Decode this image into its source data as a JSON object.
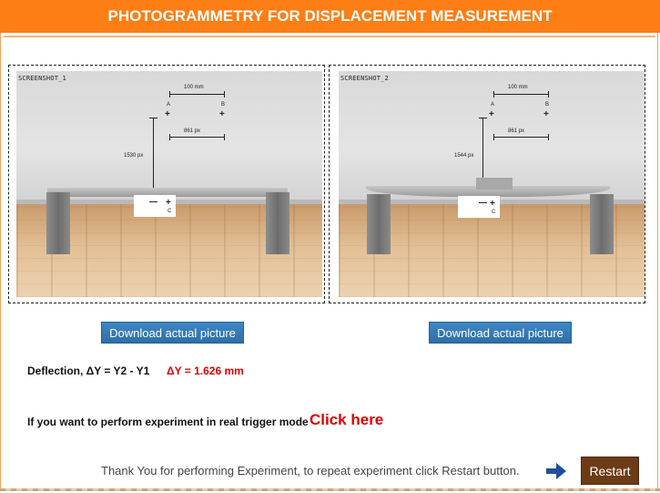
{
  "header": {
    "title": "PHOTOGRAMMETRY FOR DISPLACEMENT MEASUREMENT"
  },
  "screenshots": [
    {
      "label": "SCREENSHOT_1",
      "top_distance": "100 mm",
      "pixel_distance": "861 px",
      "vertical_distance": "1530 px",
      "point_a": "A",
      "point_b": "B",
      "point_c": "C"
    },
    {
      "label": "SCREENSHOT_2",
      "top_distance": "100 mm",
      "pixel_distance": "861 px",
      "vertical_distance": "1544 px",
      "point_a": "A",
      "point_b": "B",
      "point_c": "C"
    }
  ],
  "buttons": {
    "download_left": "Download actual picture",
    "download_right": "Download actual picture",
    "restart": "Restart"
  },
  "result": {
    "label": "Deflection, ΔY = Y2 - Y1",
    "value": "ΔY = 1.626 mm"
  },
  "mode": {
    "text": "If you want to perform experiment in real trigger mode",
    "link": "Click here"
  },
  "footer": {
    "thanks": "Thank You for performing Experiment, to repeat experiment click Restart button."
  },
  "colors": {
    "header_bg": "#fd7e14",
    "button_blue": "#2d6fa8",
    "restart_brown": "#6e3b17",
    "accent_red": "#e00000",
    "arrow_blue": "#1f4f9c"
  },
  "icons": {
    "arrow": "right-arrow-icon"
  }
}
